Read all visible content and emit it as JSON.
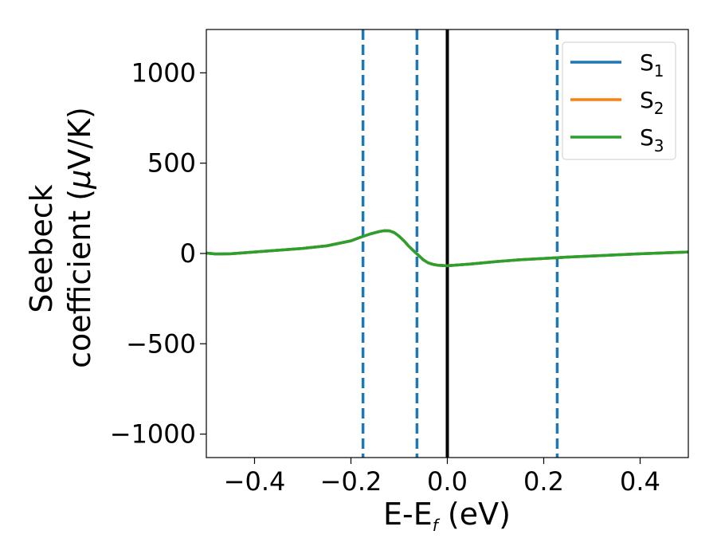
{
  "chart_data": {
    "type": "line",
    "title": "",
    "xlabel": {
      "base": "E-E",
      "sub": "f",
      "rest": " (eV)"
    },
    "ylabel": {
      "line1": "Seebeck",
      "line2_pre": "coefficient  (",
      "mu": "μ",
      "line2_post": "V/K)"
    },
    "xlim": [
      -0.5,
      0.5
    ],
    "ylim": [
      -1130,
      1240
    ],
    "xticks": [
      -0.4,
      -0.2,
      0.0,
      0.2,
      0.4
    ],
    "xtick_labels": [
      "−0.4",
      "−0.2",
      "0.0",
      "0.2",
      "0.4"
    ],
    "yticks": [
      -1000,
      -500,
      0,
      500,
      1000
    ],
    "ytick_labels": [
      "−1000",
      "−500",
      "0",
      "500",
      "1000"
    ],
    "grid": false,
    "legend": {
      "position": "top-right"
    },
    "series": [
      {
        "name": "S",
        "sub": "1",
        "color": "#1f77b4",
        "x": [
          -0.5,
          -0.48,
          -0.45,
          -0.4,
          -0.35,
          -0.3,
          -0.25,
          -0.2,
          -0.18,
          -0.16,
          -0.14,
          -0.13,
          -0.12,
          -0.11,
          -0.1,
          -0.09,
          -0.08,
          -0.07,
          -0.06,
          -0.05,
          -0.04,
          -0.03,
          -0.02,
          0.0,
          0.05,
          0.1,
          0.15,
          0.2,
          0.25,
          0.3,
          0.35,
          0.4,
          0.45,
          0.5
        ],
        "y": [
          2,
          -3,
          -2,
          8,
          18,
          28,
          42,
          70,
          90,
          108,
          122,
          126,
          125,
          115,
          95,
          70,
          40,
          15,
          -10,
          -35,
          -52,
          -60,
          -65,
          -68,
          -58,
          -45,
          -35,
          -28,
          -20,
          -14,
          -8,
          -2,
          3,
          8
        ]
      },
      {
        "name": "S",
        "sub": "2",
        "color": "#ff7f0e",
        "x": [
          -0.5,
          -0.48,
          -0.45,
          -0.4,
          -0.35,
          -0.3,
          -0.25,
          -0.2,
          -0.18,
          -0.16,
          -0.14,
          -0.13,
          -0.12,
          -0.11,
          -0.1,
          -0.09,
          -0.08,
          -0.07,
          -0.06,
          -0.05,
          -0.04,
          -0.03,
          -0.02,
          0.0,
          0.05,
          0.1,
          0.15,
          0.2,
          0.25,
          0.3,
          0.35,
          0.4,
          0.45,
          0.5
        ],
        "y": [
          2,
          -3,
          -2,
          8,
          18,
          28,
          42,
          70,
          90,
          108,
          122,
          126,
          125,
          115,
          95,
          70,
          40,
          15,
          -10,
          -35,
          -52,
          -60,
          -65,
          -68,
          -58,
          -45,
          -35,
          -28,
          -20,
          -14,
          -8,
          -2,
          3,
          8
        ]
      },
      {
        "name": "S",
        "sub": "3",
        "color": "#2ca02c",
        "x": [
          -0.5,
          -0.48,
          -0.45,
          -0.4,
          -0.35,
          -0.3,
          -0.25,
          -0.2,
          -0.18,
          -0.16,
          -0.14,
          -0.13,
          -0.12,
          -0.11,
          -0.1,
          -0.09,
          -0.08,
          -0.07,
          -0.06,
          -0.05,
          -0.04,
          -0.03,
          -0.02,
          0.0,
          0.05,
          0.1,
          0.15,
          0.2,
          0.25,
          0.3,
          0.35,
          0.4,
          0.45,
          0.5
        ],
        "y": [
          2,
          -3,
          -2,
          8,
          18,
          28,
          42,
          70,
          90,
          108,
          122,
          126,
          125,
          115,
          95,
          70,
          40,
          15,
          -10,
          -35,
          -52,
          -60,
          -65,
          -68,
          -58,
          -45,
          -35,
          -28,
          -20,
          -14,
          -8,
          -2,
          3,
          8
        ]
      }
    ],
    "reference_lines": [
      {
        "x": 0.0,
        "style": "solid",
        "color": "#000000"
      },
      {
        "x": -0.175,
        "style": "dashed",
        "color": "#1f77b4"
      },
      {
        "x": -0.063,
        "style": "dashed",
        "color": "#1f77b4"
      },
      {
        "x": 0.228,
        "style": "dashed",
        "color": "#1f77b4"
      }
    ]
  }
}
